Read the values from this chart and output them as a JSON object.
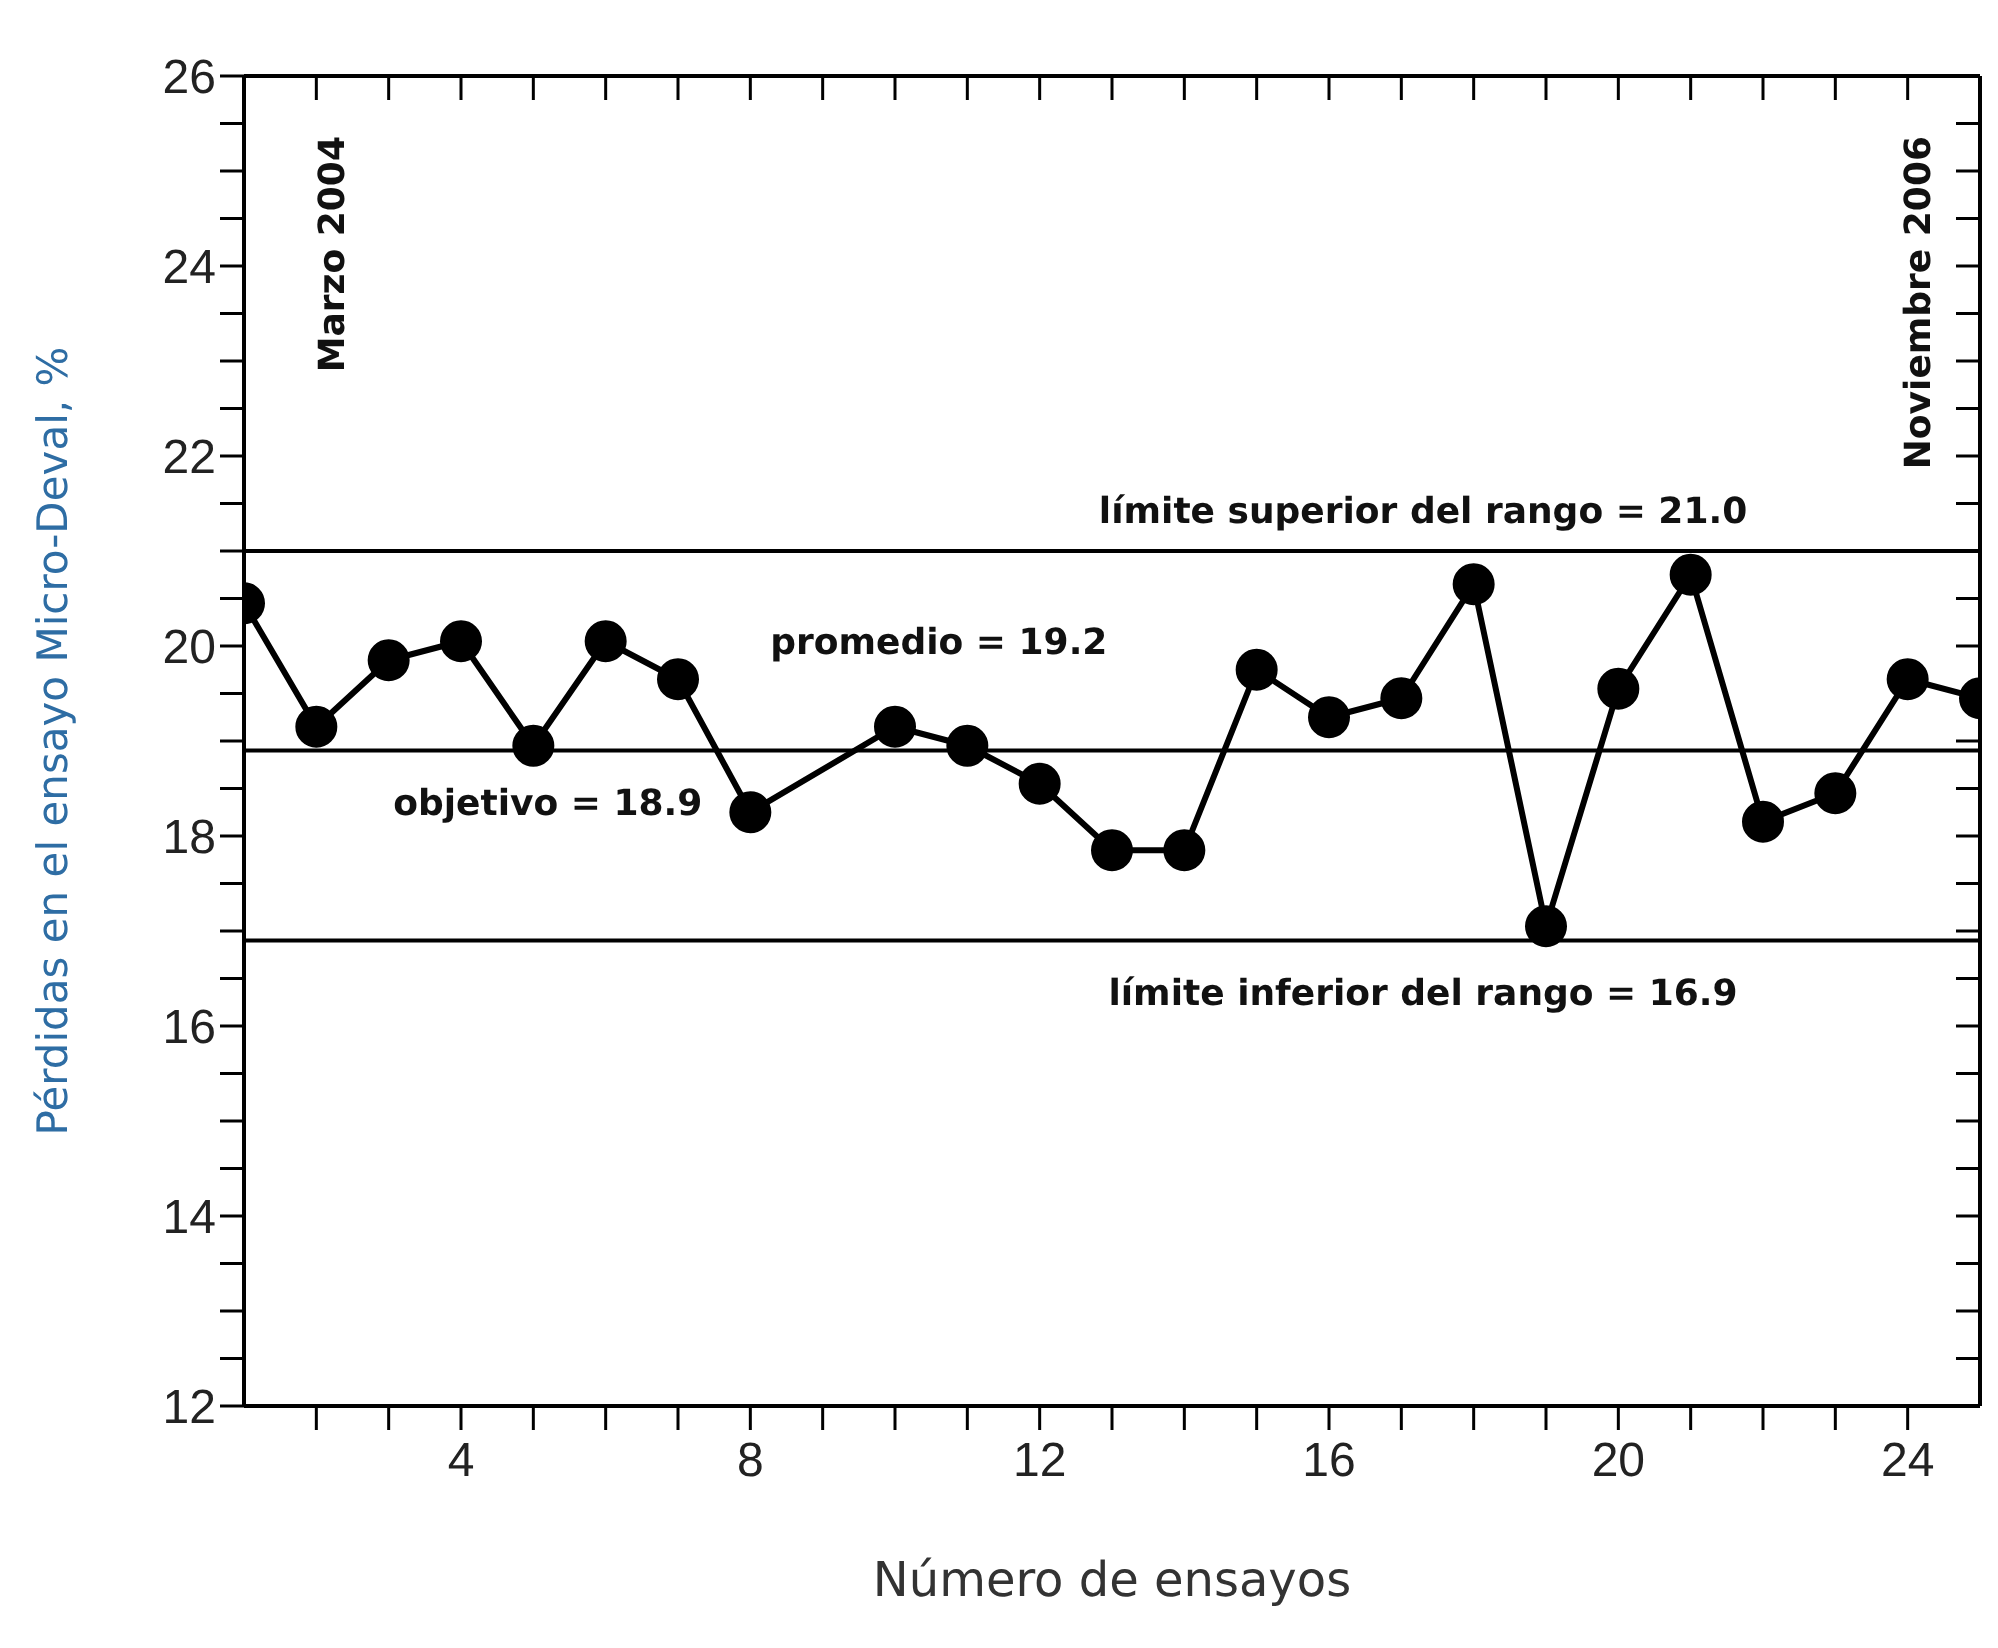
{
  "chart_data": {
    "type": "line",
    "xlabel": "Número de ensayos",
    "ylabel": "Pérdidas en el ensayo Micro-Deval, %",
    "x": [
      1,
      2,
      3,
      4,
      5,
      6,
      7,
      8,
      10,
      11,
      12,
      13,
      14,
      15,
      16,
      17,
      18,
      19,
      20,
      21,
      22,
      23,
      24,
      25
    ],
    "series": [
      {
        "color": "#000000",
        "values": [
          20.45,
          19.15,
          19.85,
          20.05,
          18.95,
          20.05,
          19.65,
          18.25,
          19.15,
          18.95,
          18.55,
          17.85,
          17.85,
          19.75,
          19.25,
          19.45,
          20.65,
          17.05,
          19.55,
          20.75,
          18.15,
          18.45,
          19.65,
          19.45
        ]
      }
    ],
    "marker": "circle",
    "line_style": "solid",
    "grid": false,
    "legend": false,
    "xlim": [
      1,
      25
    ],
    "xticks": [
      {
        "value": 2,
        "label": null
      },
      {
        "value": 3,
        "label": null
      },
      4,
      {
        "value": 5,
        "label": null
      },
      {
        "value": 6,
        "label": null
      },
      {
        "value": 7,
        "label": null
      },
      8,
      {
        "value": 9,
        "label": null
      },
      {
        "value": 10,
        "label": null
      },
      {
        "value": 11,
        "label": null
      },
      12,
      {
        "value": 13,
        "label": null
      },
      {
        "value": 14,
        "label": null
      },
      {
        "value": 15,
        "label": null
      },
      16,
      {
        "value": 17,
        "label": null
      },
      {
        "value": 18,
        "label": null
      },
      {
        "value": 19,
        "label": null
      },
      20,
      {
        "value": 21,
        "label": null
      },
      {
        "value": 22,
        "label": null
      },
      {
        "value": 23,
        "label": null
      },
      24
    ],
    "ylim": [
      12,
      26
    ],
    "yticks": [
      12,
      {
        "value": 12.5,
        "label": null
      },
      {
        "value": 13,
        "label": null
      },
      {
        "value": 13.5,
        "label": null
      },
      14,
      {
        "value": 14.5,
        "label": null
      },
      {
        "value": 15,
        "label": null
      },
      {
        "value": 15.5,
        "label": null
      },
      16,
      {
        "value": 16.5,
        "label": null
      },
      {
        "value": 17,
        "label": null
      },
      {
        "value": 17.5,
        "label": null
      },
      18,
      {
        "value": 18.5,
        "label": null
      },
      {
        "value": 19,
        "label": null
      },
      {
        "value": 19.5,
        "label": null
      },
      20,
      {
        "value": 20.5,
        "label": null
      },
      {
        "value": 21,
        "label": null
      },
      {
        "value": 21.5,
        "label": null
      },
      22,
      {
        "value": 22.5,
        "label": null
      },
      {
        "value": 23,
        "label": null
      },
      {
        "value": 23.5,
        "label": null
      },
      24,
      {
        "value": 24.5,
        "label": null
      },
      {
        "value": 25,
        "label": null
      },
      {
        "value": 25.5,
        "label": null
      },
      26
    ],
    "ref_lines": [
      {
        "axis": "y",
        "value": 21.0,
        "label": "límite superior del rango = 21.0",
        "color": "#000000"
      },
      {
        "axis": "y",
        "value": 18.9,
        "label": "objetivo = 18.9",
        "color": "#000000"
      },
      {
        "axis": "y",
        "value": 16.9,
        "label": "límite inferior del rango = 16.9",
        "color": "#000000"
      }
    ],
    "annotations": [
      "Marzo 2004",
      "Noviembre 2006",
      "promedio = 19.2"
    ]
  }
}
